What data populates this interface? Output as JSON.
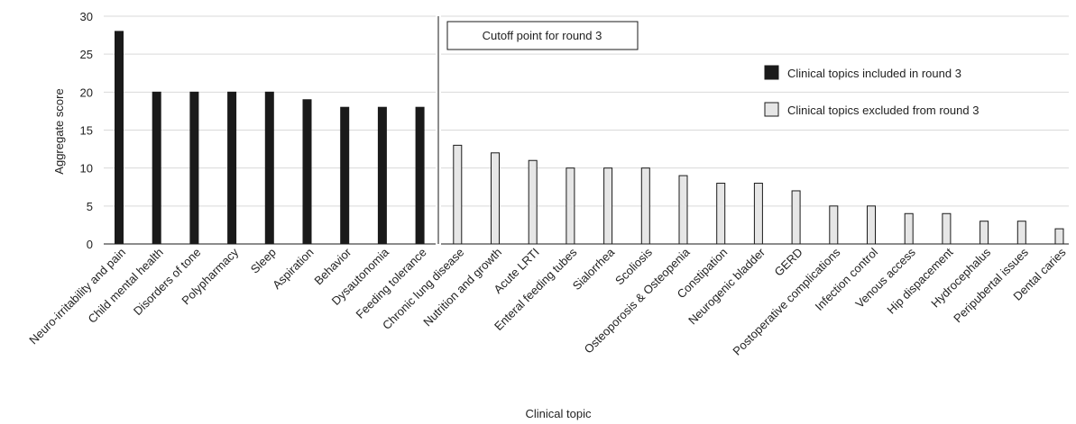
{
  "chart_data": {
    "type": "bar",
    "title": "",
    "xlabel": "Clinical topic",
    "ylabel": "Aggregate score",
    "ylim": [
      0,
      30
    ],
    "yticks": [
      0,
      5,
      10,
      15,
      20,
      25,
      30
    ],
    "grid": true,
    "legend_position": "top-right",
    "annotation": "Cutoff point for round 3",
    "categories": [
      "Neuro-irritability and pain",
      "Child mental health",
      "Disorders of tone",
      "Polypharmacy",
      "Sleep",
      "Aspiration",
      "Behavior",
      "Dysautonomia",
      "Feeding tolerance",
      "Chronic lung disease",
      "Nutrition and growth",
      "Acute LRTI",
      "Enteral feeding tubes",
      "Sialorrhea",
      "Scoliosis",
      "Osteoporosis & Osteopenia",
      "Constipation",
      "Neurogenic bladder",
      "GERD",
      "Postoperative complications",
      "Infection control",
      "Venous access",
      "Hip dispacement",
      "Hydrocephalus",
      "Peripubertal issues",
      "Dental caries"
    ],
    "values": [
      28,
      20,
      20,
      20,
      20,
      19,
      18,
      18,
      18,
      13,
      12,
      11,
      10,
      10,
      10,
      9,
      8,
      8,
      7,
      5,
      5,
      4,
      4,
      3,
      3,
      2
    ],
    "included_count": 9,
    "series": [
      {
        "name": "Clinical topics included in round 3",
        "color": "#1a1a1a"
      },
      {
        "name": "Clinical topics excluded from round 3",
        "color": "#e6e6e6"
      }
    ],
    "bar_edge_color": "#1a1a1a",
    "grid_color": "#d9d9d9"
  }
}
